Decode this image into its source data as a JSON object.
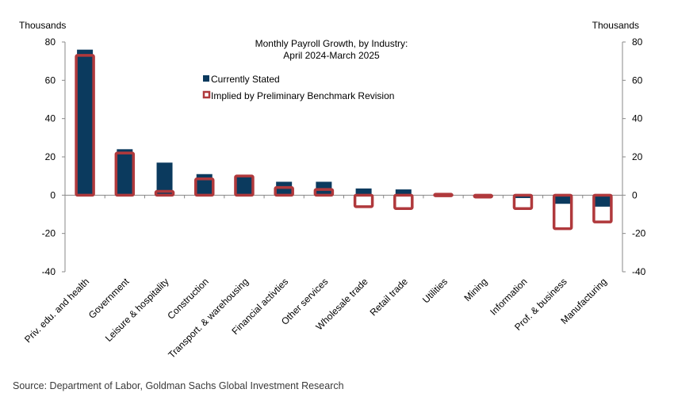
{
  "chart_data": {
    "type": "bar",
    "title": "Monthly Payroll Growth,  by Industry:",
    "subtitle": "April 2024-March  2025",
    "ylabel_left": "Thousands",
    "ylabel_right": "Thousands",
    "ylim": [
      -40,
      80
    ],
    "yticks": [
      -40,
      -20,
      0,
      20,
      40,
      60,
      80
    ],
    "grid": false,
    "legend_position": "top-center",
    "categories": [
      "Priv. edu. and health",
      "Government",
      "Leisure & hospitality",
      "Construction",
      "Transport. & warehousing",
      "Financial activties",
      "Other services",
      "Wholesale trade",
      "Retail trade",
      "Utilities",
      "Mining",
      "Information",
      "Prof. & business",
      "Manufacturing"
    ],
    "series": [
      {
        "name": "Currently Stated",
        "style": "filled",
        "color": "#0b3a5e",
        "values": [
          76,
          24,
          17,
          11,
          10,
          7,
          7,
          3.5,
          3,
          0.5,
          -1,
          -1.5,
          -4.5,
          -6
        ]
      },
      {
        "name": "Implied by Preliminary Benchmark Revision",
        "style": "outline",
        "color": "#b0393c",
        "values": [
          73,
          22,
          2,
          8.5,
          10,
          4,
          3,
          -6,
          -7,
          0.5,
          -1,
          -7,
          -17.5,
          -14
        ]
      }
    ]
  },
  "source": "Source: Department of Labor, Goldman Sachs Global Investment Research"
}
